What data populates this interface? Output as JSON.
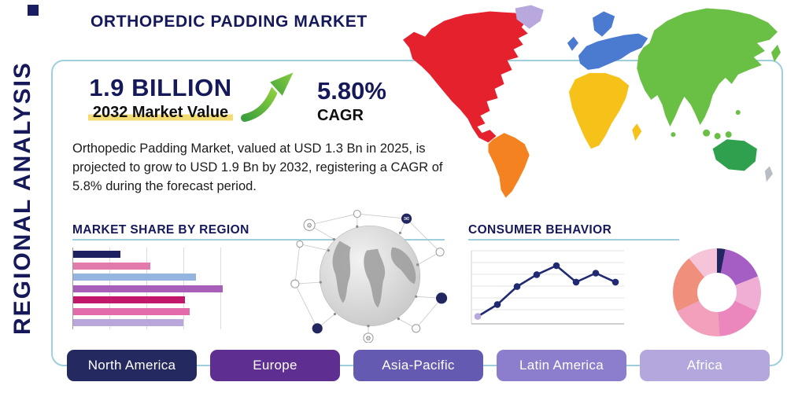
{
  "header": {
    "title": "ORTHOPEDIC PADDING MARKET",
    "side_label": "REGIONAL ANALYSIS"
  },
  "stats": {
    "market_value": "1.9 BILLION",
    "market_value_label": "2032 Market Value",
    "cagr_value": "5.80%",
    "cagr_label": "CAGR",
    "description": "Orthopedic Padding Market, valued at USD 1.3 Bn in 2025, is projected to grow to USD 1.9 Bn by 2032, registering a CAGR of 5.8% during the forecast period."
  },
  "sections": {
    "market_share_title": "MARKET SHARE BY REGION",
    "consumer_behavior_title": "CONSUMER BEHAVIOR"
  },
  "region_buttons": [
    {
      "label": "North America",
      "color": "#242a5f"
    },
    {
      "label": "Europe",
      "color": "#5e2f90"
    },
    {
      "label": "Asia-Pacific",
      "color": "#655ab1"
    },
    {
      "label": "Latin America",
      "color": "#8c7ecc"
    },
    {
      "label": "Africa",
      "color": "#b3a7dd"
    }
  ],
  "map": {
    "colors": {
      "north_america": "#e5212e",
      "greenland": "#b9a8dd",
      "south_america": "#f58220",
      "europe": "#4a7bd0",
      "africa": "#f6c21a",
      "asia": "#6abf45",
      "australia": "#2fa14e",
      "new_zealand": "#b9bec4",
      "islands": "#6abf45"
    }
  },
  "chart_data": [
    {
      "type": "bar",
      "title": "MARKET SHARE BY REGION",
      "orientation": "horizontal",
      "values": [
        30,
        49,
        78,
        95,
        71,
        74,
        70
      ],
      "colors": [
        "#1d2161",
        "#e27aae",
        "#93b5e0",
        "#a75fba",
        "#c2186b",
        "#e46bab",
        "#b9a6da"
      ],
      "xlim": [
        0,
        100
      ],
      "grid": true
    },
    {
      "type": "line",
      "title": "CONSUMER BEHAVIOR",
      "x": [
        1,
        2,
        3,
        4,
        5,
        6,
        7,
        8
      ],
      "values": [
        12,
        28,
        52,
        68,
        80,
        58,
        70,
        58
      ],
      "ylim": [
        0,
        100
      ],
      "line_color": "#1f2a72",
      "first_marker_color": "#b9a8dd",
      "grid": true
    },
    {
      "type": "pie",
      "title": "",
      "donut": true,
      "slices": [
        {
          "value": 3,
          "color": "#23275f"
        },
        {
          "value": 16,
          "color": "#a55fc4"
        },
        {
          "value": 13,
          "color": "#f0aed4"
        },
        {
          "value": 17,
          "color": "#ec87be"
        },
        {
          "value": 19,
          "color": "#f2a0bc"
        },
        {
          "value": 21,
          "color": "#ef8f7c"
        },
        {
          "value": 11,
          "color": "#f6c4d8"
        }
      ]
    }
  ],
  "theme": {
    "navy": "#15195a",
    "frame_border": "#9fcfdc",
    "arrow_green_light": "#8ed03f",
    "arrow_green_dark": "#3da03c",
    "highlight_yellow": "#f3dc74"
  }
}
